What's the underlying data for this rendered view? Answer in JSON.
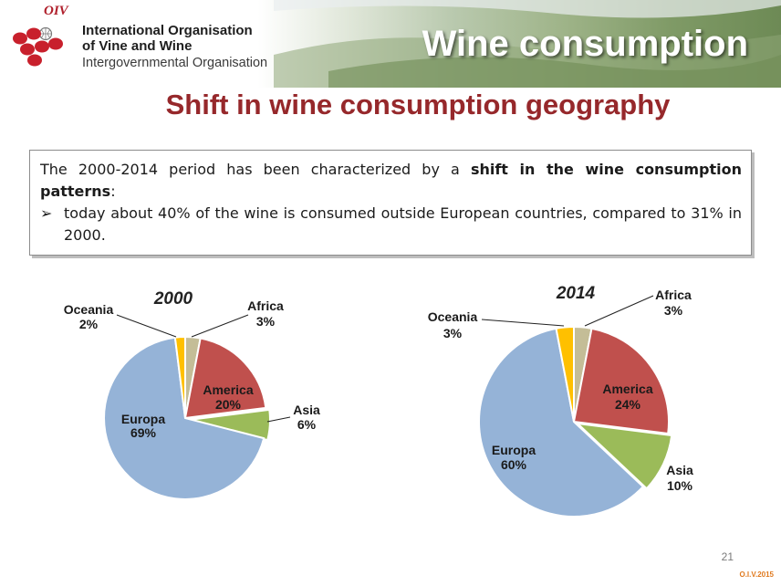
{
  "header": {
    "oiv_mark": "OIV",
    "org_line1": "International Organisation",
    "org_line2": "of Vine and Wine",
    "org_line3": "Intergovernmental Organisation",
    "slide_title": "Wine consumption"
  },
  "subtitle": "Shift in wine consumption geography",
  "textbox": {
    "para_before": "The 2000-2014 period has been characterized by a ",
    "para_bold": "shift in the wine consumption patterns",
    "para_after": ":",
    "bullet_mark": "➢",
    "bullet_text": "today about 40% of the wine is consumed outside European countries, compared to 31% in 2000."
  },
  "chart_data": [
    {
      "type": "pie",
      "title": "2000",
      "slices": [
        {
          "label": "Africa",
          "value": 3,
          "value_label": "3%",
          "color": "#c4bd97"
        },
        {
          "label": "America",
          "value": 20,
          "value_label": "20%",
          "color": "#c0504d"
        },
        {
          "label": "Asia",
          "value": 6,
          "value_label": "6%",
          "color": "#9bbb59"
        },
        {
          "label": "Europa",
          "value": 69,
          "value_label": "69%",
          "color": "#95b3d7"
        },
        {
          "label": "Oceania",
          "value": 2,
          "value_label": "2%",
          "color": "#ffc000"
        }
      ]
    },
    {
      "type": "pie",
      "title": "2014",
      "slices": [
        {
          "label": "Africa",
          "value": 3,
          "value_label": "3%",
          "color": "#c4bd97"
        },
        {
          "label": "America",
          "value": 24,
          "value_label": "24%",
          "color": "#c0504d"
        },
        {
          "label": "Asia",
          "value": 10,
          "value_label": "10%",
          "color": "#9bbb59"
        },
        {
          "label": "Europa",
          "value": 60,
          "value_label": "60%",
          "color": "#95b3d7"
        },
        {
          "label": "Oceania",
          "value": 3,
          "value_label": "3%",
          "color": "#ffc000"
        }
      ]
    }
  ],
  "page_number": "21",
  "footer": "O.I.V.2015"
}
